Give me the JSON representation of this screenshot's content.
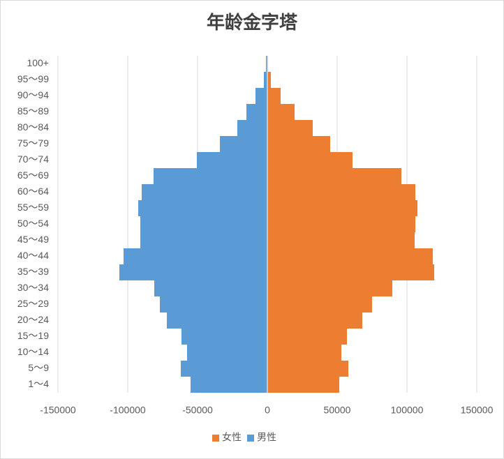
{
  "chart_data": {
    "type": "bar",
    "orientation": "horizontal",
    "title": "年龄金字塔",
    "categories": [
      "1～4",
      "5～9",
      "10～14",
      "15～19",
      "20～24",
      "25～29",
      "30～34",
      "35～39",
      "40～44",
      "45～49",
      "50～54",
      "55～59",
      "60～64",
      "65～69",
      "70～74",
      "75～79",
      "80～84",
      "85～89",
      "90～94",
      "95～99",
      "100+"
    ],
    "series": [
      {
        "name": "女性",
        "color": "#ed7d31",
        "values": [
          51500,
          58000,
          53000,
          57000,
          68000,
          75000,
          89500,
          119500,
          118500,
          105500,
          106000,
          107500,
          106000,
          96000,
          61000,
          45000,
          32500,
          19500,
          9500,
          2500,
          500
        ]
      },
      {
        "name": "男性",
        "color": "#5b9bd5",
        "values": [
          -55000,
          -62000,
          -57500,
          -61500,
          -72000,
          -77000,
          -81000,
          -106000,
          -103000,
          -91000,
          -91000,
          -92500,
          -90000,
          -81500,
          -50500,
          -34000,
          -21500,
          -15000,
          -8500,
          -2500,
          -1000
        ]
      }
    ],
    "xlim": [
      -150000,
      150000
    ],
    "xticks": [
      -150000,
      -100000,
      -50000,
      0,
      50000,
      100000,
      150000
    ],
    "grid": true,
    "legend": "bottom"
  }
}
